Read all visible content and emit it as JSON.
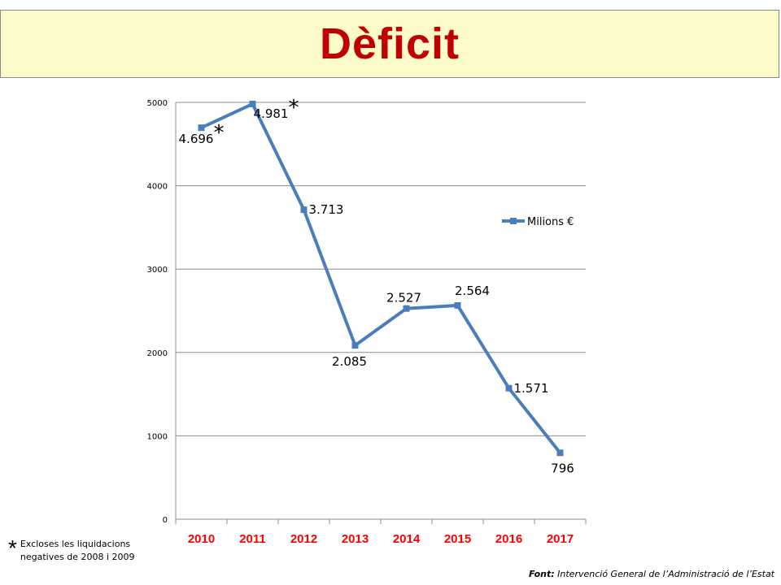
{
  "header": {
    "title": "Dèficit"
  },
  "chart_data": {
    "type": "line",
    "categories": [
      "2010",
      "2011",
      "2012",
      "2013",
      "2014",
      "2015",
      "2016",
      "2017"
    ],
    "series": [
      {
        "name": "Milions €",
        "values": [
          4696,
          4981,
          3713,
          2085,
          2527,
          2564,
          1571,
          796
        ],
        "color": "#4a7ebb"
      }
    ],
    "data_labels": [
      "4.696",
      "4.981",
      "3.713",
      "2.085",
      "2.527",
      "2.564",
      "1.571",
      "796"
    ],
    "asterisk_marks": [
      "2010",
      "2011"
    ],
    "ylim": [
      0,
      5000
    ],
    "yticks": [
      "0",
      "1000",
      "2000",
      "3000",
      "4000",
      "5000"
    ],
    "grid": true,
    "legend": "right",
    "category_label_color": "#ff0000"
  },
  "footnote": {
    "symbol": "*",
    "text": "Excloses les liquidacions negatives de 2008 i 2009"
  },
  "source": {
    "label": "Font:",
    "text": "Intervenció General de l’Administració de l’Estat"
  }
}
